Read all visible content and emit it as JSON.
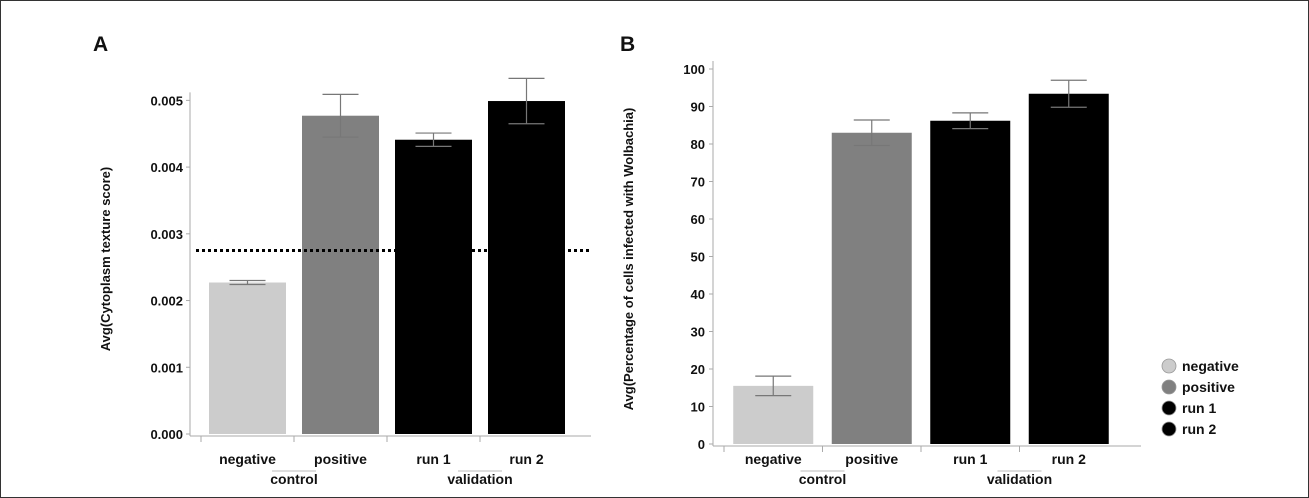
{
  "chart_data": [
    {
      "panel": "A",
      "type": "bar",
      "ylabel": "Avg(Cytoplasm texture score)",
      "ylim": [
        0,
        0.0055
      ],
      "yticks": [
        "0.000",
        "0.001",
        "0.002",
        "0.003",
        "0.004",
        "0.005"
      ],
      "categories": [
        "negative",
        "positive",
        "run 1",
        "run 2"
      ],
      "groups": [
        {
          "label": "control",
          "members": [
            "negative",
            "positive"
          ]
        },
        {
          "label": "validation",
          "members": [
            "run 1",
            "run 2"
          ]
        }
      ],
      "values": [
        0.00227,
        0.00477,
        0.00441,
        0.00499
      ],
      "errors": [
        3e-05,
        0.00032,
        0.0001,
        0.00034
      ],
      "colors": [
        "#cccccc",
        "#808080",
        "#000000",
        "#000000"
      ],
      "threshold": 0.00275,
      "grid": false
    },
    {
      "panel": "B",
      "type": "bar",
      "ylabel": "Avg(Percentage of cells infected with Wolbachia)",
      "ylim": [
        0,
        100
      ],
      "yticks": [
        "0",
        "10",
        "20",
        "30",
        "40",
        "50",
        "60",
        "70",
        "80",
        "90",
        "100"
      ],
      "categories": [
        "negative",
        "positive",
        "run 1",
        "run 2"
      ],
      "groups": [
        {
          "label": "control",
          "members": [
            "negative",
            "positive"
          ]
        },
        {
          "label": "validation",
          "members": [
            "run 1",
            "run 2"
          ]
        }
      ],
      "values": [
        15.5,
        83,
        86.2,
        93.4
      ],
      "errors": [
        2.6,
        3.4,
        2.1,
        3.6
      ],
      "colors": [
        "#cccccc",
        "#808080",
        "#000000",
        "#000000"
      ],
      "grid": false
    }
  ],
  "legend": {
    "placement": "right",
    "items": [
      {
        "label": "negative",
        "color": "#cccccc"
      },
      {
        "label": "positive",
        "color": "#808080"
      },
      {
        "label": "run 1",
        "color": "#000000"
      },
      {
        "label": "run 2",
        "color": "#000000"
      }
    ]
  }
}
